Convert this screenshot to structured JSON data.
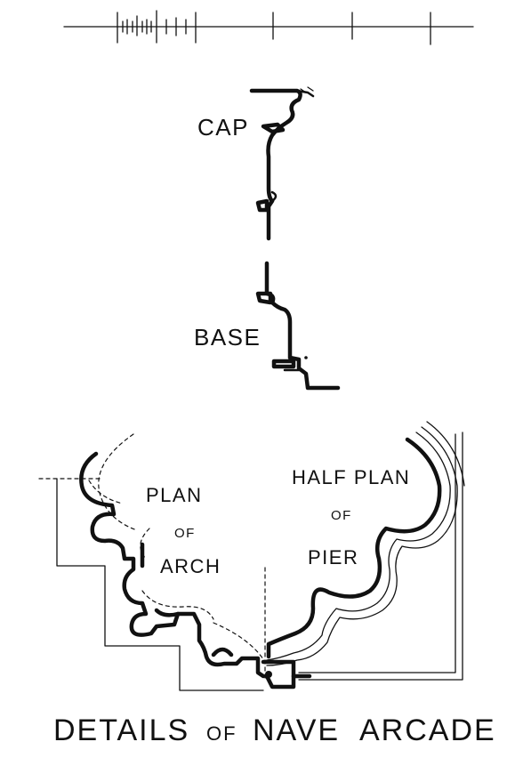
{
  "labels": {
    "cap": "CAP",
    "base": "BASE",
    "plan_arch_1": "PLAN",
    "plan_arch_2": "OF",
    "plan_arch_3": "ARCH",
    "half_plan_1": "HALF PLAN",
    "half_plan_2": "OF",
    "half_plan_3": "PIER"
  },
  "title": {
    "word1": "DETAILS",
    "word2": "OF",
    "word3": "NAVE",
    "word4": "ARCADE"
  },
  "colors": {
    "ink": "#111111",
    "paper": "#ffffff"
  }
}
